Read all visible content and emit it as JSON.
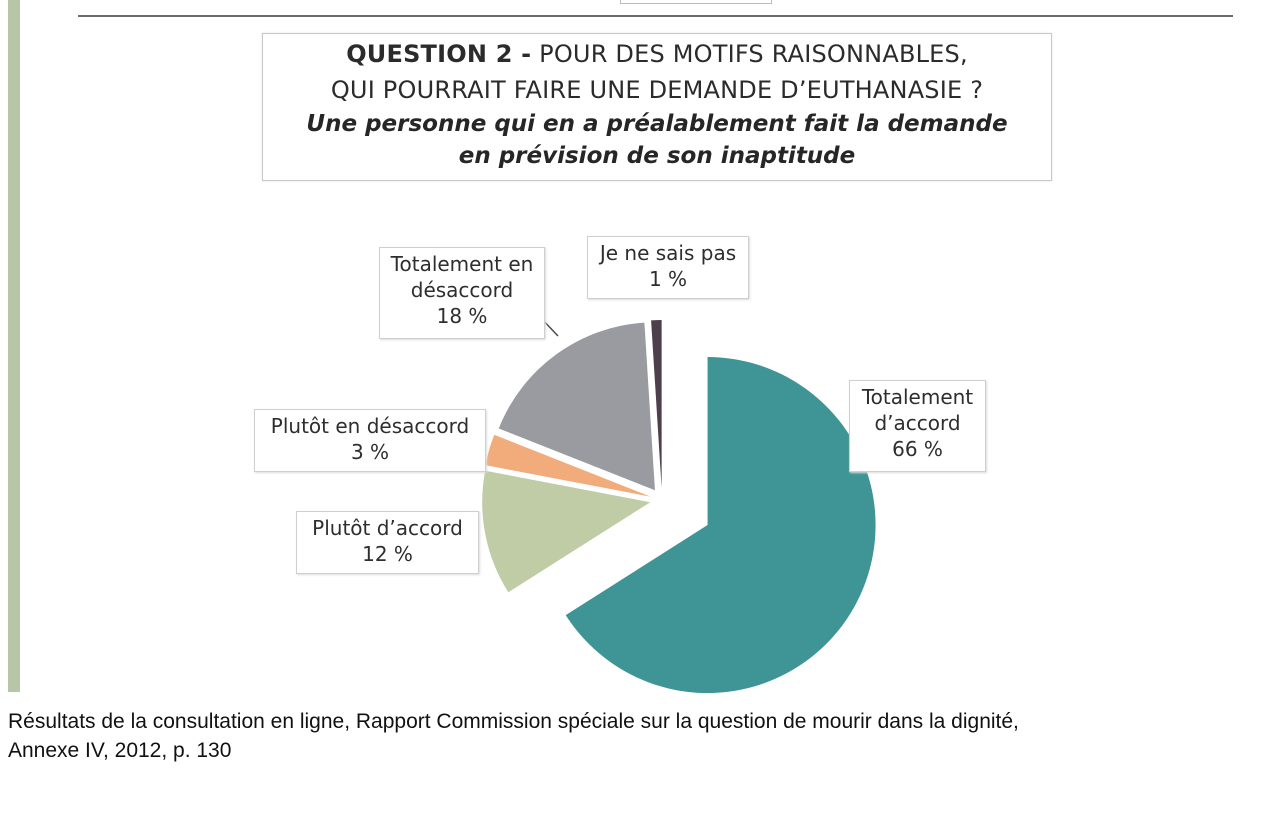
{
  "header": {
    "question_number": "QUESTION 2 -",
    "question_rest": "POUR DES MOTIFS RAISONNABLES,",
    "question_line2": "QUI POURRAIT FAIRE UNE DEMANDE D’EUTHANASIE ?",
    "subtitle_line1": "Une personne qui en a préalablement fait la demande",
    "subtitle_line2": "en prévision de son inaptitude"
  },
  "chart_data": {
    "type": "pie",
    "title": "QUESTION 2 - POUR DES MOTIFS RAISONNABLES, QUI POURRAIT FAIRE UNE DEMANDE D’EUTHANASIE ?",
    "subtitle": "Une personne qui en a préalablement fait la demande en prévision de son inaptitude",
    "slices": [
      {
        "key": "totalement_accord",
        "label_lines": [
          "Totalement",
          "d’accord"
        ],
        "pct_text": "66 %",
        "value": 66,
        "color": "#3f9595"
      },
      {
        "key": "plutot_accord",
        "label_lines": [
          "Plutôt d’accord"
        ],
        "pct_text": "12 %",
        "value": 12,
        "color": "#bfcca6"
      },
      {
        "key": "plutot_desaccord",
        "label_lines": [
          "Plutôt en désaccord"
        ],
        "pct_text": "3 %",
        "value": 3,
        "color": "#f2ab7a"
      },
      {
        "key": "totalement_desaccord",
        "label_lines": [
          "Totalement en",
          "désaccord"
        ],
        "pct_text": "18 %",
        "value": 18,
        "color": "#999ba0"
      },
      {
        "key": "ne_sais_pas",
        "label_lines": [
          "Je ne sais pas"
        ],
        "pct_text": "1 %",
        "value": 1,
        "color": "#4e3f4c"
      }
    ]
  },
  "caption": {
    "line1": "Résultats de la consultation en ligne, Rapport Commission spéciale sur la question de mourir dans la dignité,",
    "line2": "Annexe IV, 2012,  p. 130"
  }
}
